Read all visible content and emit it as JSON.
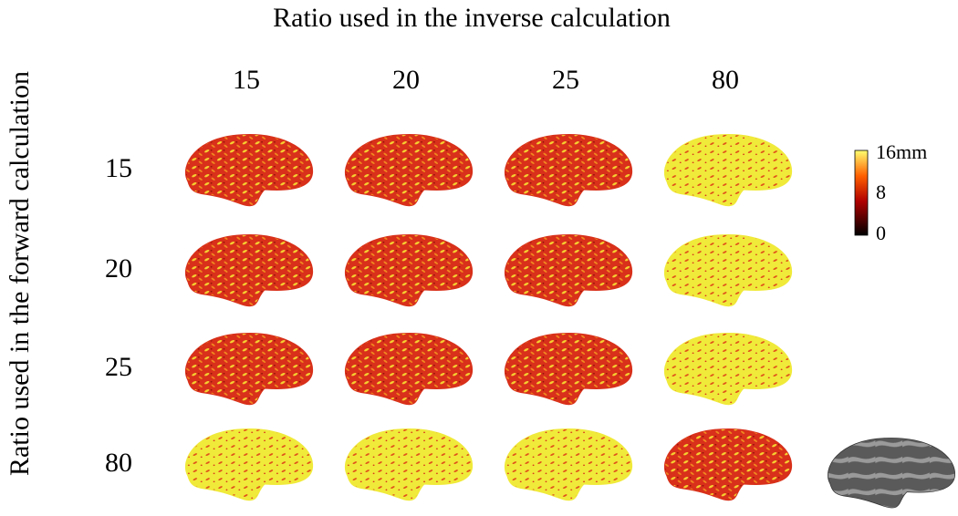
{
  "title_top": "Ratio used in the inverse calculation",
  "title_left": "Ratio used in the forward calculation",
  "columns": [
    "15",
    "20",
    "25",
    "80"
  ],
  "rows": [
    "15",
    "20",
    "25",
    "80"
  ],
  "cell_colors": [
    [
      "#d8301a",
      "#d8301a",
      "#d8301a",
      "#f0ea3a"
    ],
    [
      "#d8301a",
      "#d8301a",
      "#d8301a",
      "#f0ea3a"
    ],
    [
      "#d8301a",
      "#d8301a",
      "#d8301a",
      "#f0ea3a"
    ],
    [
      "#f0ea3a",
      "#f0ea3a",
      "#f0ea3a",
      "#d8301a"
    ]
  ],
  "colorbar": {
    "labels": [
      "16mm",
      "8",
      "0"
    ]
  }
}
